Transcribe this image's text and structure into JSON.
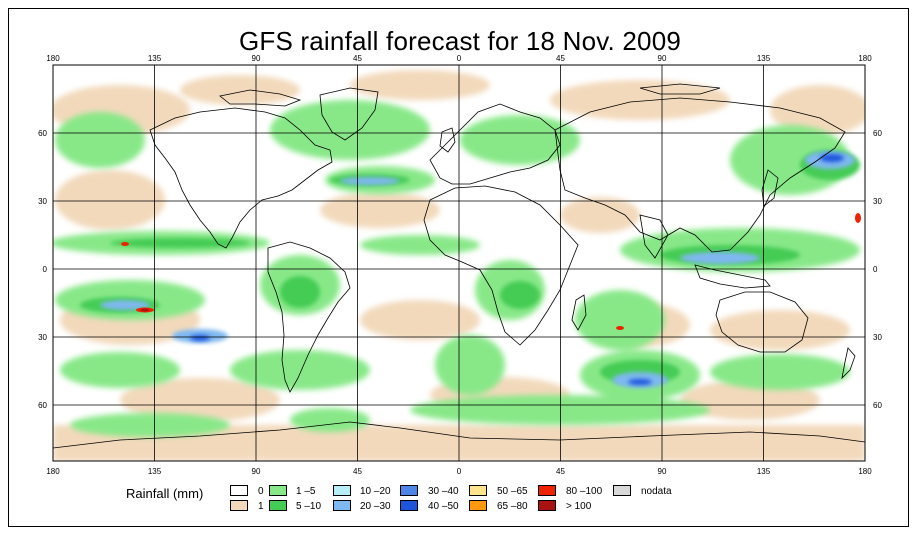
{
  "title": "GFS rainfall forecast for 18 Nov. 2009",
  "lon_ticks": [
    "180",
    "135",
    "90",
    "45",
    "0",
    "45",
    "90",
    "135",
    "180"
  ],
  "lat_ticks": [
    "60",
    "30",
    "0",
    "30",
    "60"
  ],
  "legend": {
    "label": "Rainfall (mm)",
    "items": [
      {
        "label": "0",
        "color": "#ffffff"
      },
      {
        "label": "1",
        "color": "#f2d9bb"
      },
      {
        "label": "1 –5",
        "color": "#88e888"
      },
      {
        "label": "5 –10",
        "color": "#44cc55"
      },
      {
        "label": "10 –20",
        "color": "#b8eef8"
      },
      {
        "label": "20 –30",
        "color": "#7fb8f0"
      },
      {
        "label": "30 –40",
        "color": "#4d85e8"
      },
      {
        "label": "40 –50",
        "color": "#1e55dd"
      },
      {
        "label": "50 –65",
        "color": "#ffe58a"
      },
      {
        "label": "65 –80",
        "color": "#ff9a10"
      },
      {
        "label": "80 –100",
        "color": "#ee2200"
      },
      {
        "label": "> 100",
        "color": "#aa1111"
      },
      {
        "label": "nodata",
        "color": "#d8d8d8"
      }
    ]
  }
}
